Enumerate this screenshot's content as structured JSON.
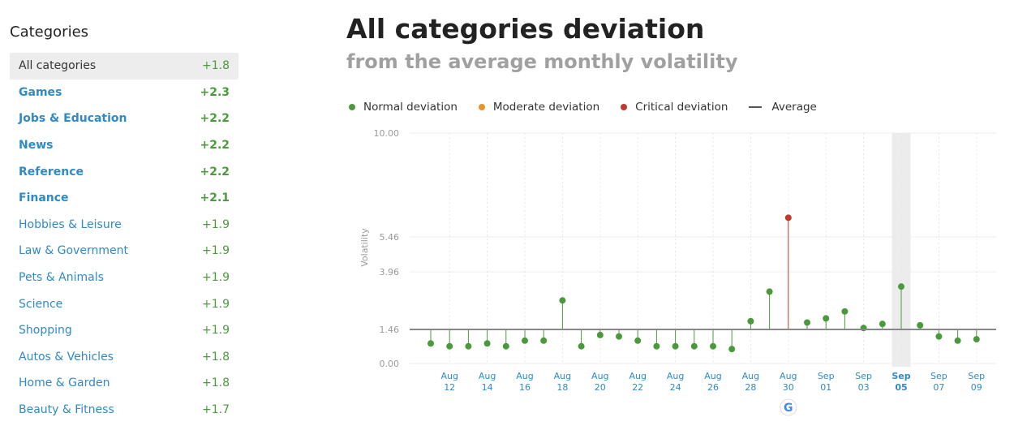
{
  "sidebar": {
    "heading": "Categories",
    "items": [
      {
        "label": "All categories",
        "value": "+1.8",
        "active": true,
        "bold": false
      },
      {
        "label": "Games",
        "value": "+2.3",
        "active": false,
        "bold": true
      },
      {
        "label": "Jobs & Education",
        "value": "+2.2",
        "active": false,
        "bold": true
      },
      {
        "label": "News",
        "value": "+2.2",
        "active": false,
        "bold": true
      },
      {
        "label": "Reference",
        "value": "+2.2",
        "active": false,
        "bold": true
      },
      {
        "label": "Finance",
        "value": "+2.1",
        "active": false,
        "bold": true
      },
      {
        "label": "Hobbies & Leisure",
        "value": "+1.9",
        "active": false,
        "bold": false
      },
      {
        "label": "Law & Government",
        "value": "+1.9",
        "active": false,
        "bold": false
      },
      {
        "label": "Pets & Animals",
        "value": "+1.9",
        "active": false,
        "bold": false
      },
      {
        "label": "Science",
        "value": "+1.9",
        "active": false,
        "bold": false
      },
      {
        "label": "Shopping",
        "value": "+1.9",
        "active": false,
        "bold": false
      },
      {
        "label": "Autos & Vehicles",
        "value": "+1.8",
        "active": false,
        "bold": false
      },
      {
        "label": "Home & Garden",
        "value": "+1.8",
        "active": false,
        "bold": false
      },
      {
        "label": "Beauty & Fitness",
        "value": "+1.7",
        "active": false,
        "bold": false
      }
    ]
  },
  "header": {
    "title": "All categories deviation",
    "subtitle": "from the average monthly volatility"
  },
  "legend": [
    {
      "label": "Normal deviation",
      "color": "#4a9a3c",
      "kind": "dot"
    },
    {
      "label": "Moderate deviation",
      "color": "#e8942a",
      "kind": "dot"
    },
    {
      "label": "Critical deviation",
      "color": "#c0392b",
      "kind": "dot"
    },
    {
      "label": "Average",
      "color": "#555555",
      "kind": "line"
    }
  ],
  "colors": {
    "normal": "#4a9a3c",
    "critical": "#c0392b",
    "average": "#888888",
    "axis_text": "#999999",
    "date_text": "#2f8ac6",
    "highlight": "#ececec"
  },
  "chart_data": {
    "type": "scatter",
    "ylabel": "Volatility",
    "y_ticks": [
      "0.00",
      "1.46",
      "3.96",
      "5.46",
      "10.00"
    ],
    "y_tick_values": [
      0,
      1.46,
      3.96,
      5.46,
      10
    ],
    "average": 1.46,
    "x": [
      "Aug 11",
      "Aug 12",
      "Aug 13",
      "Aug 14",
      "Aug 15",
      "Aug 16",
      "Aug 17",
      "Aug 18",
      "Aug 19",
      "Aug 20",
      "Aug 21",
      "Aug 22",
      "Aug 23",
      "Aug 24",
      "Aug 25",
      "Aug 26",
      "Aug 27",
      "Aug 28",
      "Aug 29",
      "Aug 30",
      "Aug 31",
      "Sep 01",
      "Sep 02",
      "Sep 03",
      "Sep 04",
      "Sep 05",
      "Sep 06",
      "Sep 07",
      "Sep 08",
      "Sep 09"
    ],
    "x_tick_labels": [
      {
        "month": "Aug",
        "day": "12",
        "index": 1
      },
      {
        "month": "Aug",
        "day": "14",
        "index": 3
      },
      {
        "month": "Aug",
        "day": "16",
        "index": 5
      },
      {
        "month": "Aug",
        "day": "18",
        "index": 7
      },
      {
        "month": "Aug",
        "day": "20",
        "index": 9
      },
      {
        "month": "Aug",
        "day": "22",
        "index": 11
      },
      {
        "month": "Aug",
        "day": "24",
        "index": 13
      },
      {
        "month": "Aug",
        "day": "26",
        "index": 15
      },
      {
        "month": "Aug",
        "day": "28",
        "index": 17
      },
      {
        "month": "Aug",
        "day": "30",
        "index": 19
      },
      {
        "month": "Sep",
        "day": "01",
        "index": 21
      },
      {
        "month": "Sep",
        "day": "03",
        "index": 23
      },
      {
        "month": "Sep",
        "day": "05",
        "index": 25
      },
      {
        "month": "Sep",
        "day": "07",
        "index": 27
      },
      {
        "month": "Sep",
        "day": "09",
        "index": 29
      }
    ],
    "highlight_index": 25,
    "marker_index": 19,
    "values": [
      0.86,
      0.74,
      0.74,
      0.86,
      0.74,
      0.98,
      0.98,
      2.72,
      0.74,
      1.22,
      1.16,
      0.98,
      0.74,
      0.74,
      0.74,
      0.74,
      0.62,
      1.82,
      3.1,
      6.3,
      1.76,
      1.94,
      2.24,
      1.52,
      1.7,
      3.32,
      1.64,
      1.16,
      0.98,
      1.04
    ],
    "status": [
      "normal",
      "normal",
      "normal",
      "normal",
      "normal",
      "normal",
      "normal",
      "normal",
      "normal",
      "normal",
      "normal",
      "normal",
      "normal",
      "normal",
      "normal",
      "normal",
      "normal",
      "normal",
      "normal",
      "critical",
      "normal",
      "normal",
      "normal",
      "normal",
      "normal",
      "normal",
      "normal",
      "normal",
      "normal",
      "normal"
    ]
  }
}
